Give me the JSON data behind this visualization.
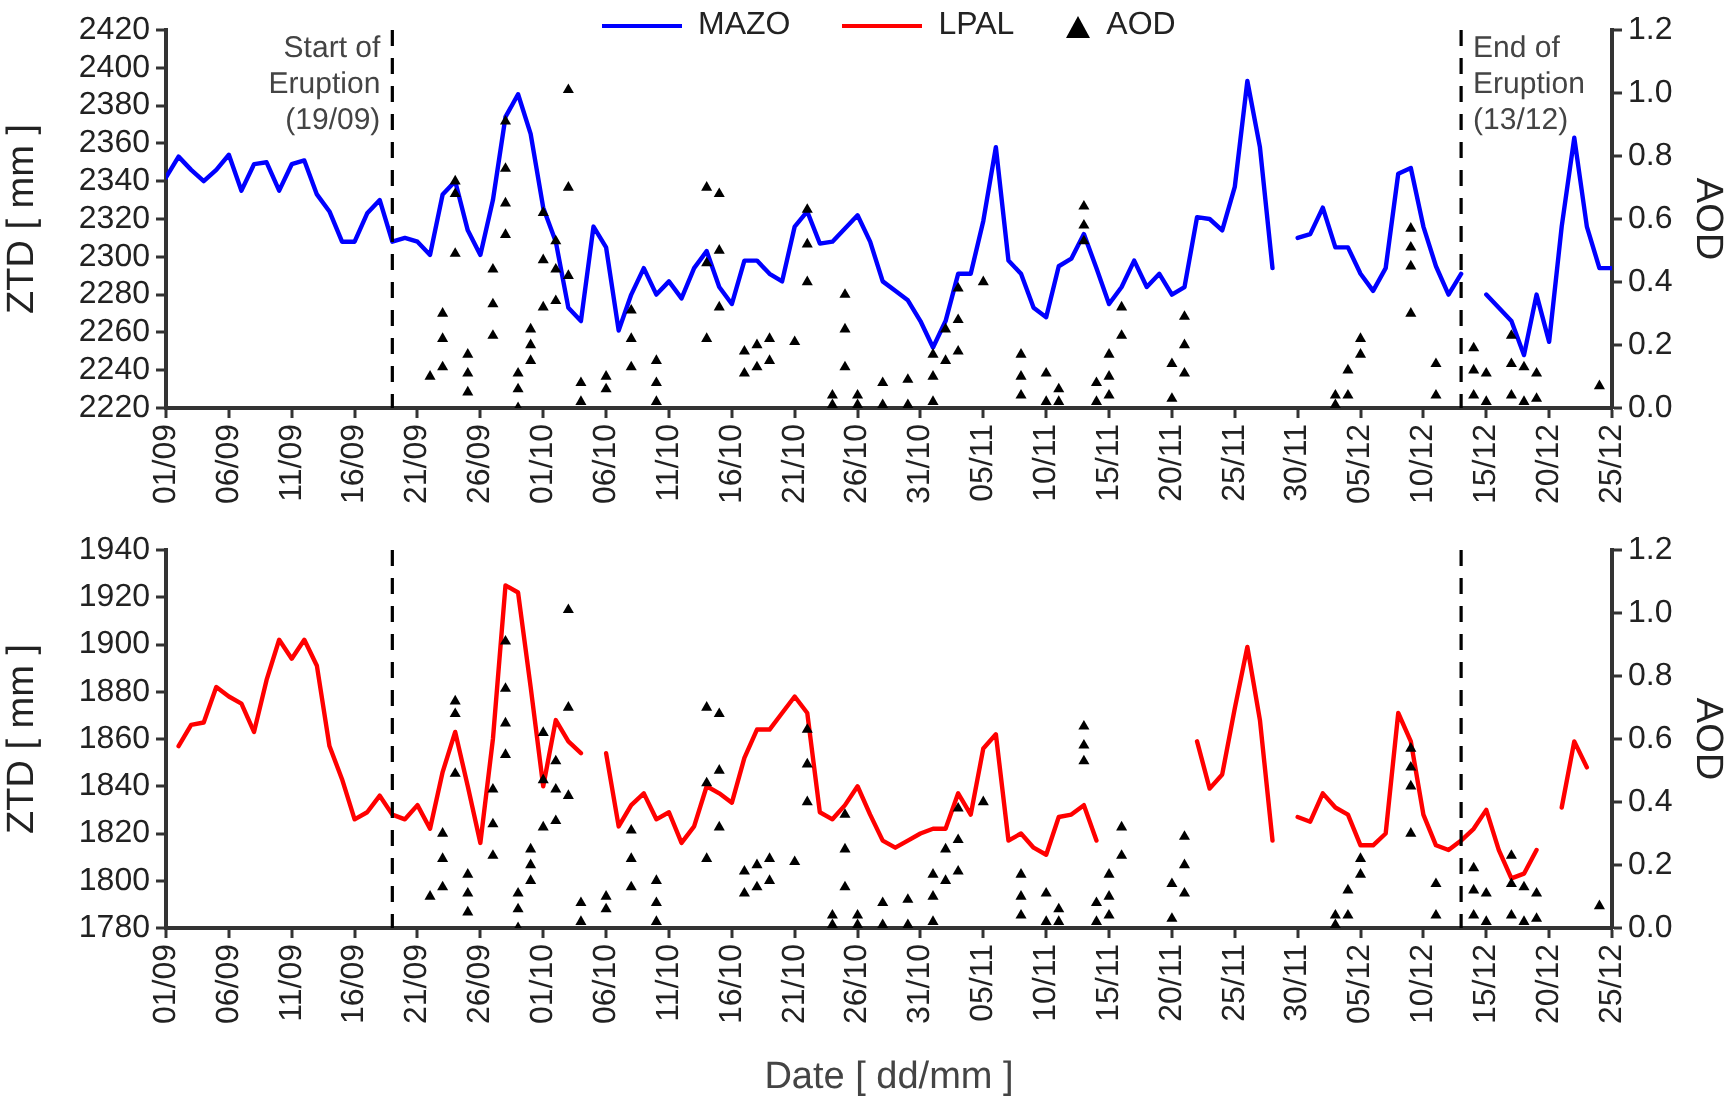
{
  "chart_data": [
    {
      "type": "line",
      "ylabel": "ZTD [ mm ]",
      "y2label": "AOD",
      "legend": "top",
      "x": [
        "--09-01",
        "--09-02",
        "--09-03",
        "--09-04",
        "--09-05",
        "--09-06",
        "--09-07",
        "--09-08",
        "--09-09",
        "--09-10",
        "--09-11",
        "--09-12",
        "--09-13",
        "--09-14",
        "--09-15",
        "--09-16",
        "--09-17",
        "--09-18",
        "--09-19",
        "--09-20",
        "--09-21",
        "--09-22",
        "--09-23",
        "--09-24",
        "--09-25",
        "--09-26",
        "--09-27",
        "--09-28",
        "--09-29",
        "--09-30",
        "--10-01",
        "--10-02",
        "--10-03",
        "--10-04",
        "--10-05",
        "--10-06",
        "--10-07",
        "--10-08",
        "--10-09",
        "--10-10",
        "--10-11",
        "--10-12",
        "--10-13",
        "--10-14",
        "--10-15",
        "--10-16",
        "--10-17",
        "--10-18",
        "--10-19",
        "--10-20",
        "--10-21",
        "--10-22",
        "--10-23",
        "--10-24",
        "--10-25",
        "--10-26",
        "--10-27",
        "--10-28",
        "--10-29",
        "--10-30",
        "--10-31",
        "--11-01",
        "--11-02",
        "--11-03",
        "--11-04",
        "--11-05",
        "--11-06",
        "--11-07",
        "--11-08",
        "--11-09",
        "--11-10",
        "--11-11",
        "--11-12",
        "--11-13",
        "--11-14",
        "--11-15",
        "--11-16",
        "--11-17",
        "--11-18",
        "--11-19",
        "--11-20",
        "--11-21",
        "--11-22",
        "--11-23",
        "--11-24",
        "--11-25",
        "--11-26",
        "--11-27",
        "--11-28",
        "--11-29",
        "--11-30",
        "--12-01",
        "--12-02",
        "--12-03",
        "--12-04",
        "--12-05",
        "--12-06",
        "--12-07",
        "--12-08",
        "--12-09",
        "--12-10",
        "--12-11",
        "--12-12",
        "--12-13",
        "--12-14",
        "--12-15",
        "--12-16",
        "--12-17",
        "--12-18",
        "--12-19",
        "--12-20",
        "--12-21",
        "--12-22",
        "--12-23",
        "--12-24",
        "--12-25"
      ],
      "xlim": [
        "--09-01",
        "--12-25"
      ],
      "xticks": [
        {
          "value": "--09-01",
          "label": "01/09"
        },
        {
          "value": "--09-06",
          "label": "06/09"
        },
        {
          "value": "--09-11",
          "label": "11/09"
        },
        {
          "value": "--09-16",
          "label": "16/09"
        },
        {
          "value": "--09-21",
          "label": "21/09"
        },
        {
          "value": "--09-26",
          "label": "26/09"
        },
        {
          "value": "--10-01",
          "label": "01/10"
        },
        {
          "value": "--10-06",
          "label": "06/10"
        },
        {
          "value": "--10-11",
          "label": "11/10"
        },
        {
          "value": "--10-16",
          "label": "16/10"
        },
        {
          "value": "--10-21",
          "label": "21/10"
        },
        {
          "value": "--10-26",
          "label": "26/10"
        },
        {
          "value": "--10-31",
          "label": "31/10"
        },
        {
          "value": "--11-05",
          "label": "05/11"
        },
        {
          "value": "--11-10",
          "label": "10/11"
        },
        {
          "value": "--11-15",
          "label": "15/11"
        },
        {
          "value": "--11-20",
          "label": "20/11"
        },
        {
          "value": "--11-25",
          "label": "25/11"
        },
        {
          "value": "--11-30",
          "label": "30/11"
        },
        {
          "value": "--12-05",
          "label": "05/12"
        },
        {
          "value": "--12-10",
          "label": "10/12"
        },
        {
          "value": "--12-15",
          "label": "15/12"
        },
        {
          "value": "--12-20",
          "label": "20/12"
        },
        {
          "value": "--12-25",
          "label": "25/12"
        }
      ],
      "ylim": [
        2220,
        2420
      ],
      "yticks": [
        2220,
        2240,
        2260,
        2280,
        2300,
        2320,
        2340,
        2360,
        2380,
        2400,
        2420
      ],
      "y2lim": [
        0,
        1.2
      ],
      "y2ticks": [
        {
          "value": 0,
          "label": "0.0"
        },
        {
          "value": 0.2,
          "label": "0.2"
        },
        {
          "value": 0.4,
          "label": "0.4"
        },
        {
          "value": 0.6,
          "label": "0.6"
        },
        {
          "value": 0.8,
          "label": "0.8"
        },
        {
          "value": 1,
          "label": "1.0"
        },
        {
          "value": 1.2,
          "label": "1.2"
        }
      ],
      "ref_lines": [
        {
          "axis": "x",
          "value": "--09-19",
          "label": "Start of\nEruption\n(19/09)",
          "color": "#000000",
          "line_style": "dashed"
        },
        {
          "axis": "x",
          "value": "--12-13",
          "label": "End of\nEruption\n(13/12)",
          "color": "#000000",
          "line_style": "dashed"
        }
      ],
      "series": [
        {
          "name": "MAZO",
          "type": "line",
          "color": "#0000ff",
          "marker": "none",
          "values": [
            2342,
            2353,
            2346,
            2340,
            2346,
            2354,
            2335,
            2349,
            2350,
            2335,
            2349,
            2351,
            2333,
            2324,
            2308,
            2308,
            2323,
            2330,
            2308,
            2310,
            2308,
            2301,
            2333,
            2340,
            2314,
            2301,
            2330,
            2374,
            2386,
            2365,
            2326,
            2308,
            2273,
            2266,
            2316,
            2305,
            2261,
            2280,
            2294,
            2280,
            2287,
            2278,
            2294,
            2303,
            2284,
            2275,
            2298,
            2298,
            2291,
            2287,
            2316,
            2324,
            2307,
            2308,
            2315,
            2322,
            2308,
            2287,
            2282,
            2277,
            2266,
            2252,
            2266,
            2291,
            2291,
            2319,
            2358,
            2298,
            2291,
            2273,
            2268,
            2295,
            2299,
            2312,
            2294,
            2275,
            2284,
            2298,
            2284,
            2291,
            2280,
            2284,
            2321,
            2320,
            2314,
            2337,
            2393,
            2358,
            2294,
            null,
            2310,
            2312,
            2326,
            2305,
            2305,
            2291,
            2282,
            2294,
            2344,
            2347,
            2316,
            2295,
            2280,
            2291,
            null,
            2280,
            2273,
            2266,
            2248,
            2280,
            2255,
            2316,
            2363,
            2316,
            2294,
            2294
          ]
        },
        {
          "name": "AOD",
          "type": "scatter",
          "axis": "y2",
          "color": "#000000",
          "marker": "triangle",
          "x": [
            "--09-22",
            "--09-23",
            "--09-23",
            "--09-23",
            "--09-24",
            "--09-24",
            "--09-24",
            "--09-25",
            "--09-25",
            "--09-25",
            "--09-27",
            "--09-27",
            "--09-27",
            "--09-28",
            "--09-28",
            "--09-28",
            "--09-28",
            "--09-29",
            "--09-29",
            "--09-29",
            "--09-30",
            "--09-30",
            "--09-30",
            "--10-01",
            "--10-01",
            "--10-01",
            "--10-02",
            "--10-02",
            "--10-02",
            "--10-03",
            "--10-03",
            "--10-03",
            "--10-04",
            "--10-04",
            "--10-06",
            "--10-06",
            "--10-08",
            "--10-08",
            "--10-08",
            "--10-10",
            "--10-10",
            "--10-10",
            "--10-14",
            "--10-14",
            "--10-14",
            "--10-15",
            "--10-15",
            "--10-15",
            "--10-17",
            "--10-17",
            "--10-18",
            "--10-18",
            "--10-19",
            "--10-19",
            "--10-21",
            "--10-22",
            "--10-22",
            "--10-22",
            "--10-24",
            "--10-24",
            "--10-25",
            "--10-25",
            "--10-25",
            "--10-26",
            "--10-26",
            "--10-28",
            "--10-28",
            "--10-30",
            "--10-30",
            "--11-01",
            "--11-01",
            "--11-01",
            "--11-02",
            "--11-02",
            "--11-03",
            "--11-03",
            "--11-03",
            "--11-05",
            "--11-08",
            "--11-08",
            "--11-08",
            "--11-10",
            "--11-10",
            "--11-11",
            "--11-11",
            "--11-13",
            "--11-13",
            "--11-13",
            "--11-14",
            "--11-14",
            "--11-15",
            "--11-15",
            "--11-15",
            "--11-16",
            "--11-16",
            "--11-20",
            "--11-20",
            "--11-21",
            "--11-21",
            "--11-21",
            "--12-03",
            "--12-03",
            "--12-04",
            "--12-04",
            "--12-05",
            "--12-05",
            "--12-09",
            "--12-09",
            "--12-09",
            "--12-09",
            "--12-11",
            "--12-11",
            "--12-14",
            "--12-14",
            "--12-14",
            "--12-15",
            "--12-15",
            "--12-17",
            "--12-17",
            "--12-17",
            "--12-18",
            "--12-18",
            "--12-19",
            "--12-19",
            "--12-24"
          ],
          "values": [
            0.1,
            0.13,
            0.22,
            0.3,
            0.49,
            0.68,
            0.72,
            0.05,
            0.11,
            0.17,
            0.23,
            0.33,
            0.44,
            0.55,
            0.65,
            0.76,
            0.91,
            0.0,
            0.06,
            0.11,
            0.15,
            0.2,
            0.25,
            0.32,
            0.47,
            0.62,
            0.34,
            0.44,
            0.53,
            0.42,
            0.7,
            1.01,
            0.02,
            0.08,
            0.06,
            0.1,
            0.13,
            0.22,
            0.31,
            0.02,
            0.08,
            0.15,
            0.22,
            0.46,
            0.7,
            0.32,
            0.5,
            0.68,
            0.11,
            0.18,
            0.13,
            0.2,
            0.15,
            0.22,
            0.21,
            0.4,
            0.52,
            0.63,
            0.01,
            0.04,
            0.13,
            0.25,
            0.36,
            0.01,
            0.04,
            0.01,
            0.08,
            0.01,
            0.09,
            0.02,
            0.1,
            0.17,
            0.15,
            0.25,
            0.18,
            0.28,
            0.38,
            0.4,
            0.04,
            0.1,
            0.17,
            0.02,
            0.11,
            0.02,
            0.06,
            0.53,
            0.58,
            0.64,
            0.02,
            0.08,
            0.04,
            0.1,
            0.17,
            0.23,
            0.32,
            0.03,
            0.14,
            0.11,
            0.2,
            0.29,
            0.01,
            0.04,
            0.04,
            0.12,
            0.17,
            0.22,
            0.3,
            0.45,
            0.51,
            0.57,
            0.04,
            0.14,
            0.04,
            0.12,
            0.19,
            0.02,
            0.11,
            0.04,
            0.14,
            0.23,
            0.02,
            0.13,
            0.03,
            0.11,
            0.07
          ]
        }
      ]
    },
    {
      "type": "line",
      "xlabel": "Date [ dd/mm ]",
      "ylabel": "ZTD [ mm ]",
      "y2label": "AOD",
      "legend": "top",
      "x": [
        "--09-02",
        "--09-03",
        "--09-04",
        "--09-05",
        "--09-06",
        "--09-07",
        "--09-08",
        "--09-09",
        "--09-10",
        "--09-11",
        "--09-12",
        "--09-13",
        "--09-14",
        "--09-15",
        "--09-16",
        "--09-17",
        "--09-18",
        "--09-19",
        "--09-20",
        "--09-21",
        "--09-22",
        "--09-23",
        "--09-24",
        "--09-25",
        "--09-26",
        "--09-27",
        "--09-28",
        "--09-29",
        "--09-30",
        "--10-01",
        "--10-02",
        "--10-03",
        "--10-04",
        "--10-05",
        "--10-06",
        "--10-07",
        "--10-08",
        "--10-09",
        "--10-10",
        "--10-11",
        "--10-12",
        "--10-13",
        "--10-14",
        "--10-15",
        "--10-16",
        "--10-17",
        "--10-18",
        "--10-19",
        "--10-20",
        "--10-21",
        "--10-22",
        "--10-23",
        "--10-24",
        "--10-25",
        "--10-26",
        "--10-27",
        "--10-28",
        "--10-29",
        "--10-30",
        "--10-31",
        "--11-01",
        "--11-02",
        "--11-03",
        "--11-04",
        "--11-05",
        "--11-06",
        "--11-07",
        "--11-08",
        "--11-09",
        "--11-10",
        "--11-11",
        "--11-12",
        "--11-13",
        "--11-14",
        "--11-15",
        "--11-16",
        "--11-17",
        "--11-18",
        "--11-19",
        "--11-20",
        "--11-21",
        "--11-22",
        "--11-23",
        "--11-24",
        "--11-25",
        "--11-26",
        "--11-27",
        "--11-28",
        "--11-29",
        "--11-30",
        "--12-01",
        "--12-02",
        "--12-03",
        "--12-04",
        "--12-05",
        "--12-06",
        "--12-07",
        "--12-08",
        "--12-09",
        "--12-10",
        "--12-11",
        "--12-12",
        "--12-13",
        "--12-14",
        "--12-15",
        "--12-16",
        "--12-17",
        "--12-18",
        "--12-19",
        "--12-20",
        "--12-21",
        "--12-22",
        "--12-23"
      ],
      "xlim": [
        "--09-01",
        "--12-25"
      ],
      "xticks": [
        {
          "value": "--09-01",
          "label": "01/09"
        },
        {
          "value": "--09-06",
          "label": "06/09"
        },
        {
          "value": "--09-11",
          "label": "11/09"
        },
        {
          "value": "--09-16",
          "label": "16/09"
        },
        {
          "value": "--09-21",
          "label": "21/09"
        },
        {
          "value": "--09-26",
          "label": "26/09"
        },
        {
          "value": "--10-01",
          "label": "01/10"
        },
        {
          "value": "--10-06",
          "label": "06/10"
        },
        {
          "value": "--10-11",
          "label": "11/10"
        },
        {
          "value": "--10-16",
          "label": "16/10"
        },
        {
          "value": "--10-21",
          "label": "21/10"
        },
        {
          "value": "--10-26",
          "label": "26/10"
        },
        {
          "value": "--10-31",
          "label": "31/10"
        },
        {
          "value": "--11-05",
          "label": "05/11"
        },
        {
          "value": "--11-10",
          "label": "10/11"
        },
        {
          "value": "--11-15",
          "label": "15/11"
        },
        {
          "value": "--11-20",
          "label": "20/11"
        },
        {
          "value": "--11-25",
          "label": "25/11"
        },
        {
          "value": "--11-30",
          "label": "30/11"
        },
        {
          "value": "--12-05",
          "label": "05/12"
        },
        {
          "value": "--12-10",
          "label": "10/12"
        },
        {
          "value": "--12-15",
          "label": "15/12"
        },
        {
          "value": "--12-20",
          "label": "20/12"
        },
        {
          "value": "--12-25",
          "label": "25/12"
        }
      ],
      "ylim": [
        1780,
        1940
      ],
      "yticks": [
        1780,
        1800,
        1820,
        1840,
        1860,
        1880,
        1900,
        1920,
        1940
      ],
      "y2lim": [
        0,
        1.2
      ],
      "y2ticks": [
        {
          "value": 0,
          "label": "0.0"
        },
        {
          "value": 0.2,
          "label": "0.2"
        },
        {
          "value": 0.4,
          "label": "0.4"
        },
        {
          "value": 0.6,
          "label": "0.6"
        },
        {
          "value": 0.8,
          "label": "0.8"
        },
        {
          "value": 1,
          "label": "1.0"
        },
        {
          "value": 1.2,
          "label": "1.2"
        }
      ],
      "ref_lines": [
        {
          "axis": "x",
          "value": "--09-19",
          "color": "#000000",
          "line_style": "dashed"
        },
        {
          "axis": "x",
          "value": "--12-13",
          "color": "#000000",
          "line_style": "dashed"
        }
      ],
      "series": [
        {
          "name": "LPAL",
          "type": "line",
          "color": "#ff0000",
          "marker": "none",
          "values": [
            1857,
            1866,
            1867,
            1882,
            1878,
            1875,
            1863,
            1885,
            1902,
            1894,
            1902,
            1891,
            1857,
            1843,
            1826,
            1829,
            1836,
            1828,
            1826,
            1832,
            1822,
            1846,
            1863,
            1840,
            1816,
            1860,
            1925,
            1922,
            1882,
            1840,
            1868,
            1859,
            1854,
            null,
            1854,
            1823,
            1832,
            1837,
            1826,
            1829,
            1816,
            1823,
            1840,
            1837,
            1833,
            1852,
            1864,
            1864,
            1871,
            1878,
            1871,
            1829,
            1826,
            1832,
            1840,
            1828,
            1817,
            1814,
            1817,
            1820,
            1822,
            1822,
            1837,
            1828,
            1856,
            1862,
            1817,
            1820,
            1814,
            1811,
            1827,
            1828,
            1832,
            1817,
            null,
            null,
            null,
            null,
            null,
            null,
            null,
            1859,
            1839,
            1845,
            1873,
            1899,
            1868,
            1817,
            null,
            1827,
            1825,
            1837,
            1831,
            1828,
            1815,
            1815,
            1820,
            1871,
            1859,
            1828,
            1815,
            1813,
            1817,
            1822,
            1830,
            1813,
            1801,
            1803,
            1813,
            null,
            1831,
            1859,
            1848
          ]
        },
        {
          "type": "scatter",
          "axis": "y2",
          "color": "#000000",
          "marker": "triangle",
          "x": [
            "--09-22",
            "--09-23",
            "--09-23",
            "--09-23",
            "--09-24",
            "--09-24",
            "--09-24",
            "--09-25",
            "--09-25",
            "--09-25",
            "--09-27",
            "--09-27",
            "--09-27",
            "--09-28",
            "--09-28",
            "--09-28",
            "--09-28",
            "--09-29",
            "--09-29",
            "--09-29",
            "--09-30",
            "--09-30",
            "--09-30",
            "--10-01",
            "--10-01",
            "--10-01",
            "--10-02",
            "--10-02",
            "--10-02",
            "--10-03",
            "--10-03",
            "--10-03",
            "--10-04",
            "--10-04",
            "--10-06",
            "--10-06",
            "--10-08",
            "--10-08",
            "--10-08",
            "--10-10",
            "--10-10",
            "--10-10",
            "--10-14",
            "--10-14",
            "--10-14",
            "--10-15",
            "--10-15",
            "--10-15",
            "--10-17",
            "--10-17",
            "--10-18",
            "--10-18",
            "--10-19",
            "--10-19",
            "--10-21",
            "--10-22",
            "--10-22",
            "--10-22",
            "--10-24",
            "--10-24",
            "--10-25",
            "--10-25",
            "--10-25",
            "--10-26",
            "--10-26",
            "--10-28",
            "--10-28",
            "--10-30",
            "--10-30",
            "--11-01",
            "--11-01",
            "--11-01",
            "--11-02",
            "--11-02",
            "--11-03",
            "--11-03",
            "--11-03",
            "--11-05",
            "--11-08",
            "--11-08",
            "--11-08",
            "--11-10",
            "--11-10",
            "--11-11",
            "--11-11",
            "--11-13",
            "--11-13",
            "--11-13",
            "--11-14",
            "--11-14",
            "--11-15",
            "--11-15",
            "--11-15",
            "--11-16",
            "--11-16",
            "--11-20",
            "--11-20",
            "--11-21",
            "--11-21",
            "--11-21",
            "--12-03",
            "--12-03",
            "--12-04",
            "--12-04",
            "--12-05",
            "--12-05",
            "--12-09",
            "--12-09",
            "--12-09",
            "--12-09",
            "--12-11",
            "--12-11",
            "--12-14",
            "--12-14",
            "--12-14",
            "--12-15",
            "--12-15",
            "--12-17",
            "--12-17",
            "--12-17",
            "--12-18",
            "--12-18",
            "--12-19",
            "--12-19",
            "--12-24"
          ],
          "values": [
            0.1,
            0.13,
            0.22,
            0.3,
            0.49,
            0.68,
            0.72,
            0.05,
            0.11,
            0.17,
            0.23,
            0.33,
            0.44,
            0.55,
            0.65,
            0.76,
            0.91,
            0.0,
            0.06,
            0.11,
            0.15,
            0.2,
            0.25,
            0.32,
            0.47,
            0.62,
            0.34,
            0.44,
            0.53,
            0.42,
            0.7,
            1.01,
            0.02,
            0.08,
            0.06,
            0.1,
            0.13,
            0.22,
            0.31,
            0.02,
            0.08,
            0.15,
            0.22,
            0.46,
            0.7,
            0.32,
            0.5,
            0.68,
            0.11,
            0.18,
            0.13,
            0.2,
            0.15,
            0.22,
            0.21,
            0.4,
            0.52,
            0.63,
            0.01,
            0.04,
            0.13,
            0.25,
            0.36,
            0.01,
            0.04,
            0.01,
            0.08,
            0.01,
            0.09,
            0.02,
            0.1,
            0.17,
            0.15,
            0.25,
            0.18,
            0.28,
            0.38,
            0.4,
            0.04,
            0.1,
            0.17,
            0.02,
            0.11,
            0.02,
            0.06,
            0.53,
            0.58,
            0.64,
            0.02,
            0.08,
            0.04,
            0.1,
            0.17,
            0.23,
            0.32,
            0.03,
            0.14,
            0.11,
            0.2,
            0.29,
            0.01,
            0.04,
            0.04,
            0.12,
            0.17,
            0.22,
            0.3,
            0.45,
            0.51,
            0.57,
            0.04,
            0.14,
            0.04,
            0.12,
            0.19,
            0.02,
            0.11,
            0.04,
            0.14,
            0.23,
            0.02,
            0.13,
            0.03,
            0.11,
            0.07
          ]
        }
      ]
    }
  ]
}
